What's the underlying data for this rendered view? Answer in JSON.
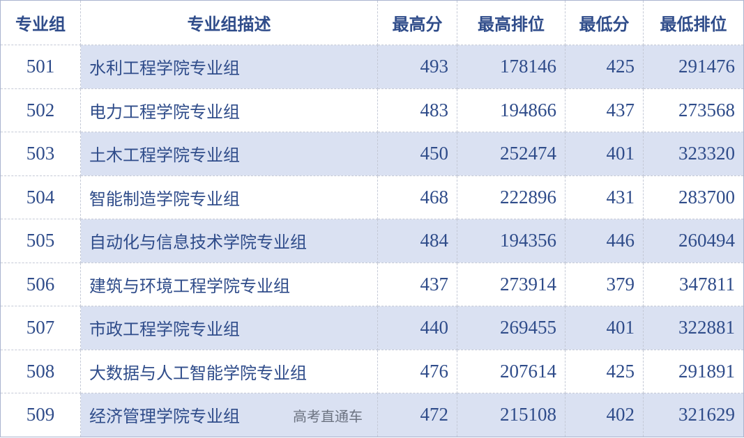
{
  "headers": [
    "专业组",
    "专业组描述",
    "最高分",
    "最高排位",
    "最低分",
    "最低排位"
  ],
  "rows": [
    [
      "501",
      "水利工程学院专业组",
      "493",
      "178146",
      "425",
      "291476"
    ],
    [
      "502",
      "电力工程学院专业组",
      "483",
      "194866",
      "437",
      "273568"
    ],
    [
      "503",
      "土木工程学院专业组",
      "450",
      "252474",
      "401",
      "323320"
    ],
    [
      "504",
      "智能制造学院专业组",
      "468",
      "222896",
      "431",
      "283700"
    ],
    [
      "505",
      "自动化与信息技术学院专业组",
      "484",
      "194356",
      "446",
      "260494"
    ],
    [
      "506",
      "建筑与环境工程学院专业组",
      "437",
      "273914",
      "379",
      "347811"
    ],
    [
      "507",
      "市政工程学院专业组",
      "440",
      "269455",
      "401",
      "322881"
    ],
    [
      "508",
      "大数据与人工智能学院专业组",
      "476",
      "207614",
      "425",
      "291891"
    ],
    [
      "509",
      "经济管理学院专业组",
      "472",
      "215108",
      "402",
      "321629"
    ]
  ],
  "watermark": "高考直通车",
  "colors": {
    "text": "#2f4c8a",
    "shade": "#dae1f2"
  }
}
